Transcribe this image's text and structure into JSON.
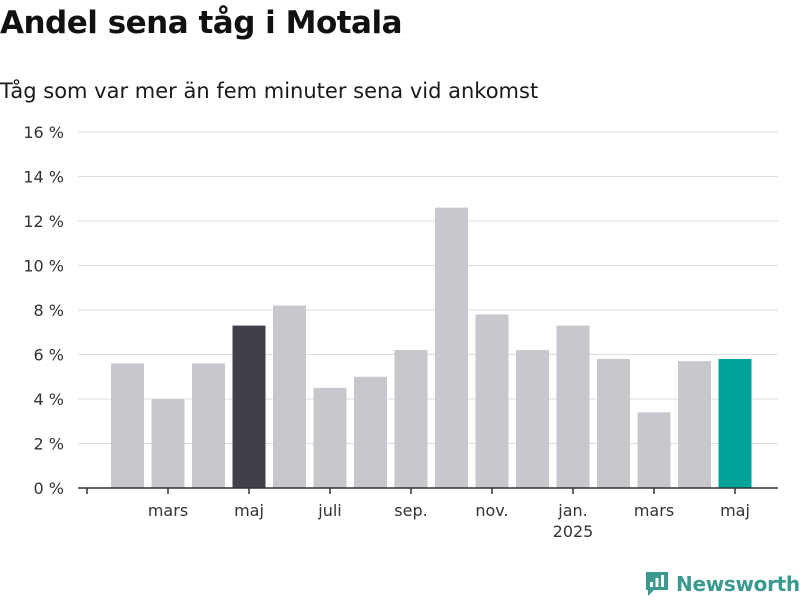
{
  "header": {
    "title": "Andel sena tåg i Motala",
    "subtitle": "Tåg som var mer än fem minuter sena vid ankomst"
  },
  "brand": {
    "name": "Newsworthy",
    "color": "#3a9a8f"
  },
  "colors": {
    "default_bar": "#c8c7cd",
    "highlight_bar": "#40404b",
    "latest_bar": "#00a39a",
    "grid": "#dddddd",
    "axis": "#333333",
    "text": "#333333"
  },
  "chart_data": {
    "type": "bar",
    "title": "Andel sena tåg i Motala",
    "subtitle": "Tåg som var mer än fem minuter sena vid ankomst",
    "xlabel": "",
    "ylabel": "",
    "ylim": [
      0,
      16
    ],
    "y_ticks": [
      0,
      2,
      4,
      6,
      8,
      10,
      12,
      14,
      16
    ],
    "y_tick_labels": [
      "0 %",
      "2 %",
      "4 %",
      "6 %",
      "8 %",
      "10 %",
      "12 %",
      "14 %",
      "16 %"
    ],
    "grid": true,
    "months": [
      "2024-02",
      "2024-03",
      "2024-04",
      "2024-05",
      "2024-06",
      "2024-07",
      "2024-08",
      "2024-09",
      "2024-10",
      "2024-11",
      "2024-12",
      "2025-01",
      "2025-02",
      "2025-03",
      "2025-04",
      "2025-05"
    ],
    "values": [
      5.6,
      4.0,
      5.6,
      7.3,
      8.2,
      4.5,
      5.0,
      6.2,
      12.6,
      7.8,
      6.2,
      7.3,
      5.8,
      3.4,
      5.7,
      5.8
    ],
    "bar_styles": [
      "default",
      "default",
      "default",
      "highlight",
      "default",
      "default",
      "default",
      "default",
      "default",
      "default",
      "default",
      "default",
      "default",
      "default",
      "default",
      "latest"
    ],
    "x_tick_labels": [
      {
        "month": "2024-03",
        "label": "mars",
        "sublabel": ""
      },
      {
        "month": "2024-05",
        "label": "maj",
        "sublabel": ""
      },
      {
        "month": "2024-07",
        "label": "juli",
        "sublabel": ""
      },
      {
        "month": "2024-09",
        "label": "sep.",
        "sublabel": ""
      },
      {
        "month": "2024-11",
        "label": "nov.",
        "sublabel": ""
      },
      {
        "month": "2025-01",
        "label": "jan.",
        "sublabel": "2025"
      },
      {
        "month": "2025-03",
        "label": "mars",
        "sublabel": ""
      },
      {
        "month": "2025-05",
        "label": "maj",
        "sublabel": ""
      }
    ]
  }
}
